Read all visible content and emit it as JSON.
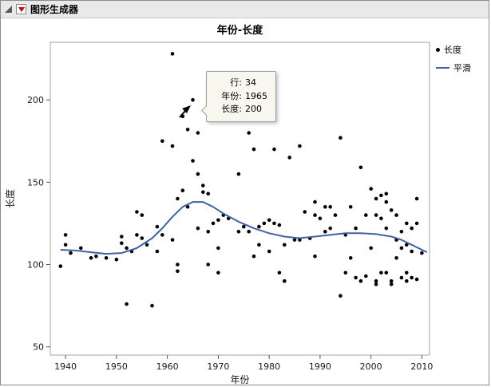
{
  "window": {
    "title": "图形生成器"
  },
  "legend": {
    "position": "right"
  },
  "tooltip": {
    "rows": [
      {
        "label": "行:",
        "value": "34"
      },
      {
        "label": "年份:",
        "value": "1965"
      },
      {
        "label": "长度:",
        "value": "200"
      }
    ]
  },
  "chart_data": {
    "type": "scatter",
    "title": "年份-长度",
    "xlabel": "年份",
    "ylabel": "长度",
    "xlim": [
      1937,
      2011.5
    ],
    "ylim": [
      45,
      235
    ],
    "x_ticks": [
      1940,
      1950,
      1960,
      1970,
      1980,
      1990,
      2000,
      2010
    ],
    "y_ticks": [
      50,
      100,
      150,
      200
    ],
    "grid": false,
    "legend_position": "right",
    "series": [
      {
        "name": "长度",
        "kind": "scatter",
        "color": "#000000",
        "points": [
          [
            1939,
            99
          ],
          [
            1940,
            112
          ],
          [
            1940,
            118
          ],
          [
            1941,
            107
          ],
          [
            1943,
            110
          ],
          [
            1945,
            104
          ],
          [
            1946,
            105
          ],
          [
            1948,
            104
          ],
          [
            1950,
            103
          ],
          [
            1951,
            117
          ],
          [
            1951,
            113
          ],
          [
            1952,
            110
          ],
          [
            1952,
            76
          ],
          [
            1953,
            108
          ],
          [
            1954,
            132
          ],
          [
            1954,
            118
          ],
          [
            1955,
            130
          ],
          [
            1955,
            116
          ],
          [
            1956,
            112
          ],
          [
            1957,
            75
          ],
          [
            1958,
            123
          ],
          [
            1958,
            108
          ],
          [
            1959,
            175
          ],
          [
            1959,
            118
          ],
          [
            1961,
            228
          ],
          [
            1961,
            172
          ],
          [
            1961,
            115
          ],
          [
            1962,
            140
          ],
          [
            1962,
            100
          ],
          [
            1962,
            96
          ],
          [
            1963,
            190
          ],
          [
            1963,
            145
          ],
          [
            1964,
            182
          ],
          [
            1964,
            135
          ],
          [
            1965,
            200
          ],
          [
            1965,
            163
          ],
          [
            1966,
            180
          ],
          [
            1966,
            155
          ],
          [
            1966,
            122
          ],
          [
            1967,
            148
          ],
          [
            1967,
            144
          ],
          [
            1968,
            143
          ],
          [
            1968,
            120
          ],
          [
            1968,
            100
          ],
          [
            1969,
            125
          ],
          [
            1970,
            127
          ],
          [
            1970,
            110
          ],
          [
            1970,
            95
          ],
          [
            1971,
            130
          ],
          [
            1972,
            128
          ],
          [
            1974,
            155
          ],
          [
            1974,
            120
          ],
          [
            1975,
            123
          ],
          [
            1976,
            180
          ],
          [
            1976,
            120
          ],
          [
            1977,
            170
          ],
          [
            1977,
            105
          ],
          [
            1978,
            123
          ],
          [
            1978,
            112
          ],
          [
            1979,
            125
          ],
          [
            1980,
            127
          ],
          [
            1980,
            108
          ],
          [
            1981,
            170
          ],
          [
            1981,
            125
          ],
          [
            1982,
            124
          ],
          [
            1982,
            95
          ],
          [
            1983,
            112
          ],
          [
            1983,
            90
          ],
          [
            1984,
            165
          ],
          [
            1985,
            115
          ],
          [
            1986,
            172
          ],
          [
            1986,
            115
          ],
          [
            1987,
            132
          ],
          [
            1988,
            116
          ],
          [
            1989,
            138
          ],
          [
            1989,
            130
          ],
          [
            1989,
            105
          ],
          [
            1990,
            128
          ],
          [
            1991,
            135
          ],
          [
            1991,
            120
          ],
          [
            1992,
            135
          ],
          [
            1992,
            122
          ],
          [
            1993,
            130
          ],
          [
            1994,
            177
          ],
          [
            1994,
            81
          ],
          [
            1995,
            118
          ],
          [
            1995,
            95
          ],
          [
            1996,
            135
          ],
          [
            1996,
            104
          ],
          [
            1997,
            122
          ],
          [
            1997,
            92
          ],
          [
            1998,
            159
          ],
          [
            1998,
            90
          ],
          [
            1999,
            130
          ],
          [
            1999,
            93
          ],
          [
            2000,
            146
          ],
          [
            2000,
            110
          ],
          [
            2001,
            140
          ],
          [
            2001,
            130
          ],
          [
            2001,
            90
          ],
          [
            2001,
            88
          ],
          [
            2002,
            142
          ],
          [
            2002,
            128
          ],
          [
            2002,
            95
          ],
          [
            2003,
            143
          ],
          [
            2003,
            138
          ],
          [
            2003,
            122
          ],
          [
            2003,
            95
          ],
          [
            2004,
            133
          ],
          [
            2004,
            90
          ],
          [
            2004,
            88
          ],
          [
            2005,
            130
          ],
          [
            2005,
            115
          ],
          [
            2005,
            104
          ],
          [
            2006,
            120
          ],
          [
            2006,
            110
          ],
          [
            2006,
            92
          ],
          [
            2007,
            125
          ],
          [
            2007,
            112
          ],
          [
            2007,
            95
          ],
          [
            2007,
            90
          ],
          [
            2008,
            122
          ],
          [
            2008,
            108
          ],
          [
            2008,
            92
          ],
          [
            2009,
            140
          ],
          [
            2009,
            125
          ],
          [
            2009,
            91
          ],
          [
            2010,
            107
          ]
        ]
      },
      {
        "name": "平滑",
        "kind": "line",
        "color": "#3f62a6",
        "points": [
          [
            1939,
            109
          ],
          [
            1942,
            108.5
          ],
          [
            1945,
            107.5
          ],
          [
            1948,
            106.5
          ],
          [
            1951,
            107
          ],
          [
            1954,
            110
          ],
          [
            1957,
            116
          ],
          [
            1959,
            122
          ],
          [
            1961,
            129
          ],
          [
            1963,
            135
          ],
          [
            1965,
            138
          ],
          [
            1967,
            138
          ],
          [
            1969,
            135
          ],
          [
            1971,
            131
          ],
          [
            1974,
            126
          ],
          [
            1977,
            122
          ],
          [
            1980,
            119
          ],
          [
            1983,
            117
          ],
          [
            1986,
            116
          ],
          [
            1989,
            117
          ],
          [
            1992,
            118
          ],
          [
            1995,
            119
          ],
          [
            1998,
            119
          ],
          [
            2001,
            118.5
          ],
          [
            2004,
            117
          ],
          [
            2006,
            115
          ],
          [
            2008,
            112
          ],
          [
            2010,
            109
          ],
          [
            2011,
            107.5
          ]
        ]
      }
    ]
  }
}
